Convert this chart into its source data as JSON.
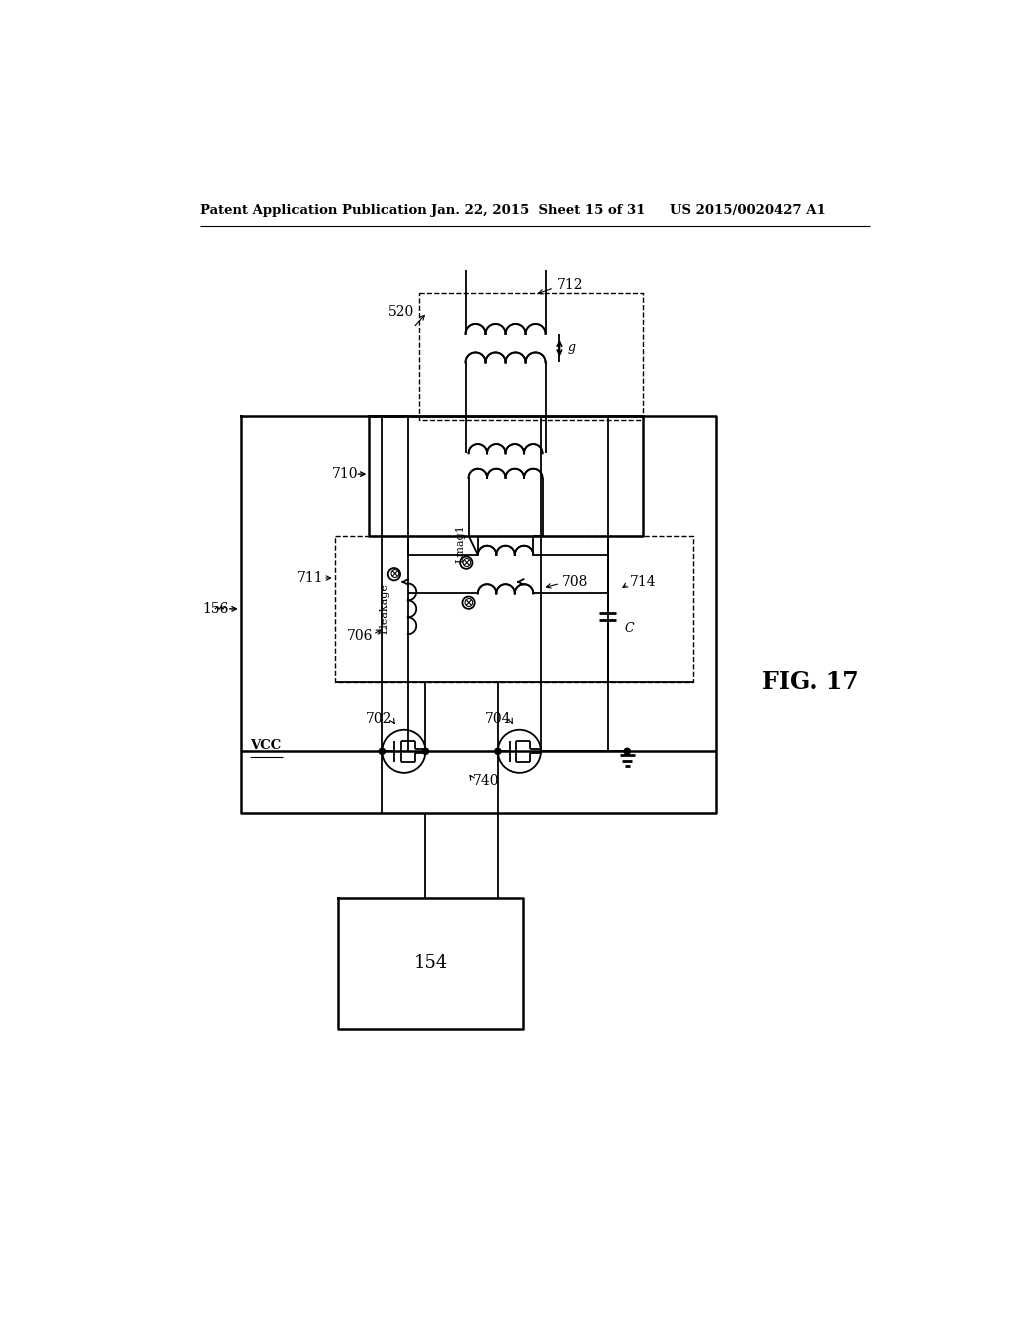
{
  "bg_color": "#ffffff",
  "line_color": "#000000",
  "header_left": "Patent Application Publication",
  "header_mid": "Jan. 22, 2015  Sheet 15 of 31",
  "header_right": "US 2015/0020427 A1",
  "fig_label": "FIG. 17"
}
